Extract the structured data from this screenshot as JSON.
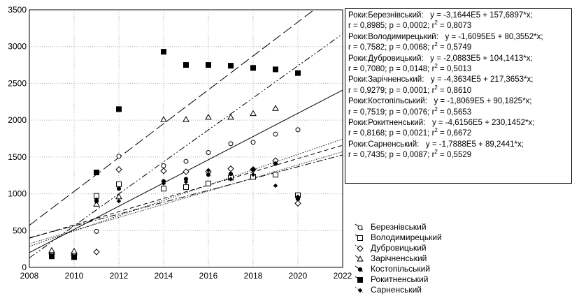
{
  "chart_data": {
    "type": "scatter",
    "title": "",
    "xlabel": "",
    "ylabel": "",
    "xlim": [
      2008,
      2022
    ],
    "ylim": [
      0,
      3500
    ],
    "x_ticks": [
      2008,
      2010,
      2012,
      2014,
      2016,
      2018,
      2020,
      2022
    ],
    "y_ticks": [
      0,
      500,
      1000,
      1500,
      2000,
      2500,
      3000,
      3500
    ],
    "grid": true,
    "stats_box": [
      {
        "p1": "Роки:Березнівський:   y = -3,1644E5 + 157,6897*x;",
        "p2": "r = 0,8985; p = 0,0002; r",
        "r2": "= 0,8073"
      },
      {
        "p1": "Роки:Володимирецький:   y = -1,6095E5 + 80,3552*x;",
        "p2": "r = 0,7582; p = 0,0068; r",
        "r2": "= 0,5749"
      },
      {
        "p1": "Роки:Дубровицький:   y = -2,0883E5 + 104,1413*x;",
        "p2": "r = 0,7080; p = 0,0148; r",
        "r2": "= 0,5013"
      },
      {
        "p1": "Роки:Зарічненський:   y = -4,3634E5 + 217,3653*x;",
        "p2": "r = 0,9279; p = 0,0001; r",
        "r2": "= 0,8610"
      },
      {
        "p1": "Роки:Костопільський:   y = -1,8069E5 + 90,1825*x;",
        "p2": "r = 0,7519; p = 0,0076; r",
        "r2": "= 0,5653"
      },
      {
        "p1": "Роки:Рокитненський:   y = -4,6156E5 + 230,1452*x;",
        "p2": "r = 0,8168; p = 0,0021; r",
        "r2": "= 0,6672"
      },
      {
        "p1": "Роки:Сарненський:   y = -1,7888E5 + 89,2441*x;",
        "p2": "r = 0,7435; p = 0,0087; r",
        "r2": "= 0,5529"
      }
    ],
    "sup2": "2",
    "series": [
      {
        "name": "Березнівський",
        "marker": "circle-open",
        "line": "solid",
        "intercept": -316440,
        "slope": 157.6897,
        "x": [
          2009,
          2010,
          2011,
          2012,
          2014,
          2015,
          2016,
          2017,
          2018,
          2019,
          2020
        ],
        "y": [
          190,
          180,
          490,
          1510,
          1380,
          1440,
          1560,
          1680,
          1700,
          1810,
          1870
        ]
      },
      {
        "name": "Володимирецький",
        "marker": "square-open",
        "line": "dashdot",
        "intercept": -160950,
        "slope": 80.3552,
        "x": [
          2009,
          2010,
          2011,
          2012,
          2014,
          2015,
          2016,
          2017,
          2018,
          2019,
          2020
        ],
        "y": [
          160,
          150,
          970,
          1130,
          1070,
          1090,
          1140,
          1220,
          1230,
          1260,
          980
        ]
      },
      {
        "name": "Дубровицький",
        "marker": "diamond-open",
        "line": "dotted",
        "intercept": -208830,
        "slope": 104.1413,
        "x": [
          2009,
          2010,
          2011,
          2012,
          2014,
          2015,
          2016,
          2017,
          2018,
          2019,
          2020
        ],
        "y": [
          180,
          170,
          210,
          1330,
          1310,
          1300,
          1300,
          1340,
          1330,
          1450,
          870
        ]
      },
      {
        "name": "Зарічненський",
        "marker": "triangle-open",
        "line": "dashdotdot",
        "intercept": -436340,
        "slope": 217.3653,
        "x": [
          2009,
          2010,
          2011,
          2012,
          2014,
          2015,
          2016,
          2017,
          2018,
          2019
        ],
        "y": [
          230,
          220,
          860,
          960,
          2010,
          2010,
          2040,
          2040,
          2090,
          2160
        ]
      },
      {
        "name": "Костопільський",
        "marker": "circle-filled",
        "line": "dashed",
        "intercept": -180690,
        "slope": 90.1825,
        "x": [
          2009,
          2010,
          2011,
          2012,
          2014,
          2015,
          2016,
          2017,
          2018,
          2019,
          2020
        ],
        "y": [
          150,
          140,
          900,
          1070,
          1170,
          1200,
          1260,
          1270,
          1330,
          1410,
          930
        ]
      },
      {
        "name": "Рокитненський",
        "marker": "square-filled",
        "line": "longdash",
        "intercept": -461560,
        "slope": 230.1452,
        "x": [
          2009,
          2010,
          2011,
          2012,
          2014,
          2015,
          2016,
          2017,
          2018,
          2019,
          2020
        ],
        "y": [
          150,
          140,
          1290,
          2150,
          2930,
          2750,
          2750,
          2740,
          2710,
          2690,
          2640
        ]
      },
      {
        "name": "Сарненський",
        "marker": "diamond-filled",
        "line": "dotdense",
        "intercept": -178880,
        "slope": 89.2441,
        "x": [
          2009,
          2010,
          2011,
          2012,
          2014,
          2015,
          2016,
          2017,
          2018,
          2019,
          2020
        ],
        "y": [
          140,
          130,
          920,
          900,
          1140,
          1160,
          1320,
          1200,
          1260,
          1110,
          960
        ]
      }
    ]
  }
}
